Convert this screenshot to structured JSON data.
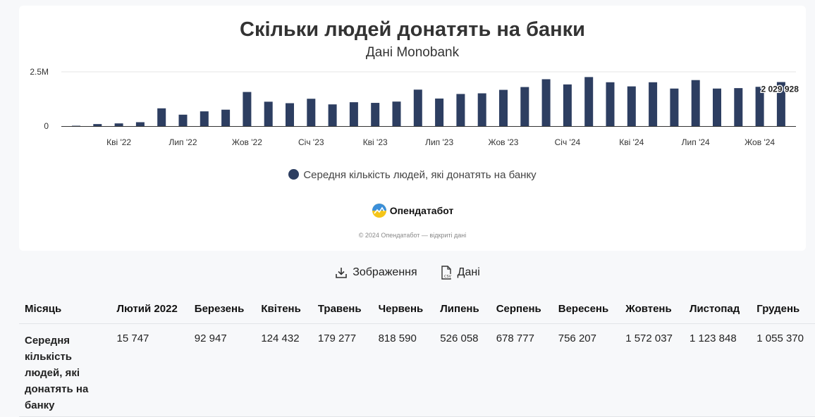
{
  "chart_data": {
    "type": "bar",
    "title": "Скільки людей донатять на банки",
    "subtitle": "Дані Monobank",
    "series_name": "Середня кількість людей, які донатять на банку",
    "color": "#2d3e61",
    "ylim": [
      0,
      2500000
    ],
    "y_ticks": [
      "0",
      "2.5M"
    ],
    "x_ticks": [
      "Кві '22",
      "Лип '22",
      "Жов '22",
      "Січ '23",
      "Кві '23",
      "Лип '23",
      "Жов '23",
      "Січ '24",
      "Кві '24",
      "Лип '24",
      "Жов '24"
    ],
    "categories": [
      "2022-02",
      "2022-03",
      "2022-04",
      "2022-05",
      "2022-06",
      "2022-07",
      "2022-08",
      "2022-09",
      "2022-10",
      "2022-11",
      "2022-12",
      "2023-01",
      "2023-02",
      "2023-03",
      "2023-04",
      "2023-05",
      "2023-06",
      "2023-07",
      "2023-08",
      "2023-09",
      "2023-10",
      "2023-11",
      "2023-12",
      "2024-01",
      "2024-02",
      "2024-03",
      "2024-04",
      "2024-05",
      "2024-06",
      "2024-07",
      "2024-08",
      "2024-09",
      "2024-10",
      "2024-11"
    ],
    "values": [
      15747,
      92947,
      124432,
      179277,
      818590,
      526058,
      678777,
      756207,
      1572037,
      1123848,
      1055370,
      1260000,
      1000000,
      1100000,
      1070000,
      1130000,
      1680000,
      1270000,
      1480000,
      1510000,
      1670000,
      1800000,
      2160000,
      1920000,
      2260000,
      2020000,
      1830000,
      2020000,
      1730000,
      2120000,
      1730000,
      1750000,
      1810000,
      2029928
    ],
    "last_label": "2 029 928",
    "grid": true
  },
  "branding": {
    "logo_text": "Опендатабот",
    "copyright": "© 2024 Опендатабот — відкриті дані"
  },
  "actions": {
    "image_label": "Зображення",
    "data_label": "Дані"
  },
  "table": {
    "headers": [
      "Місяць",
      "Лютий 2022",
      "Березень",
      "Квітень",
      "Травень",
      "Червень",
      "Липень",
      "Серпень",
      "Вересень",
      "Жовтень",
      "Листопад",
      "Грудень"
    ],
    "row_label": "Середня кількість людей, які донатять на банку",
    "cells": [
      "15 747",
      "92 947",
      "124 432",
      "179 277",
      "818 590",
      "526 058",
      "678 777",
      "756 207",
      "1 572 037",
      "1 123 848",
      "1 055 370"
    ]
  }
}
